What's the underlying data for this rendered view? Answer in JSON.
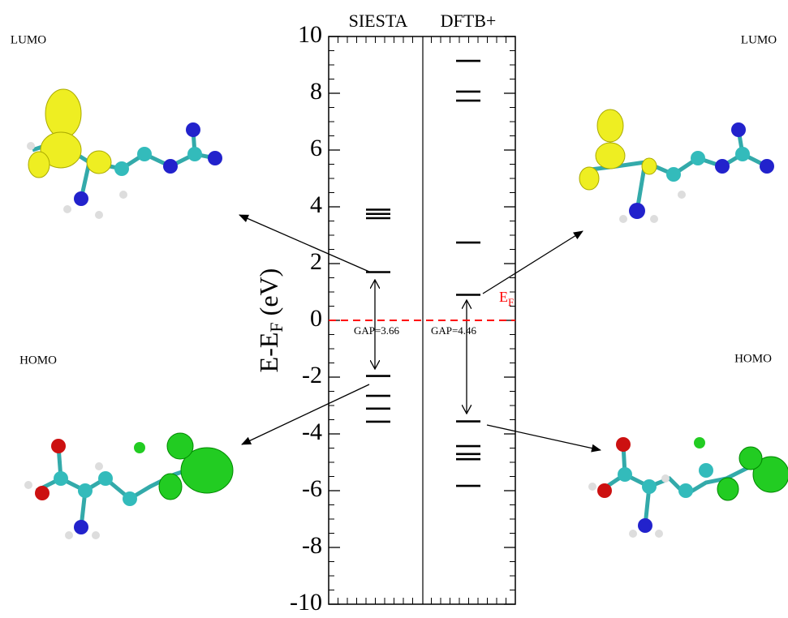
{
  "chart_data": {
    "type": "levels",
    "series": [
      {
        "name": "SIESTA",
        "color": "#000000",
        "values": [
          3.9,
          3.75,
          3.6,
          1.7,
          -1.96,
          -2.66,
          -3.11,
          -3.57
        ]
      },
      {
        "name": "DFTB+",
        "color": "#000000",
        "values": [
          9.14,
          8.06,
          7.74,
          2.74,
          0.9,
          -3.56,
          -4.43,
          -4.71,
          -4.89,
          -5.83
        ]
      }
    ],
    "y_label": {
      "main": "E-E",
      "sub": "F",
      "unit": " (eV)"
    },
    "ylim": [
      -10,
      10
    ],
    "yticks": [
      -10,
      -8,
      -6,
      -4,
      -2,
      0,
      2,
      4,
      6,
      8,
      10
    ],
    "minor_tick_step": 0.5,
    "fermi_level": 0,
    "fermi_color": "#ff0000",
    "fermi_label": {
      "main": "E",
      "sub": "F"
    },
    "gap_labels": [
      "GAP=3.66",
      "GAP=4.46"
    ],
    "molecule_labels": {
      "top_left": "LUMO",
      "top_right": "LUMO",
      "bottom_left": "HOMO",
      "bottom_right": "HOMO"
    }
  }
}
